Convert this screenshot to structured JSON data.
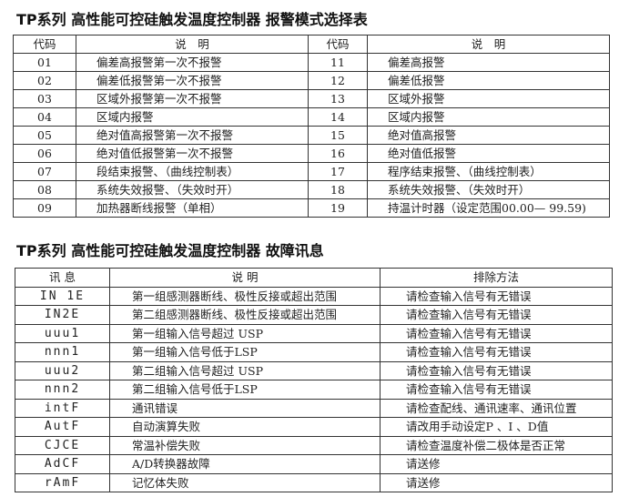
{
  "alarm": {
    "title": "TP系列 高性能可控硅触发温度控制器 报警模式选择表",
    "headers": [
      "代码",
      "说　明",
      "代码",
      "说　明"
    ],
    "rows": [
      [
        "01",
        "偏差高报警第一次不报警",
        "11",
        "偏差高报警"
      ],
      [
        "02",
        "偏差低报警第一次不报警",
        "12",
        "偏差低报警"
      ],
      [
        "03",
        "区域外报警第一次不报警",
        "13",
        "区域外报警"
      ],
      [
        "04",
        "区域内报警",
        "14",
        "区域内报警"
      ],
      [
        "05",
        "绝对值高报警第一次不报警",
        "15",
        "绝对值高报警"
      ],
      [
        "06",
        "绝对值低报警第一次不报警",
        "16",
        "绝对值低报警"
      ],
      [
        "07",
        "段结束报警、（曲线控制表）",
        "17",
        "程序结束报警、（曲线控制表）"
      ],
      [
        "08",
        "系统失效报警、（失效时开）",
        "18",
        "系统失效报警、（失效时开）"
      ],
      [
        "09",
        "加热器断线报警（单相）",
        "19",
        "持温计时器（设定范围00.00— 99.59)"
      ]
    ]
  },
  "fault": {
    "title": "TP系列 高性能可控硅触发温度控制器 故障讯息",
    "headers": [
      "讯 息",
      "说 明",
      "排除方法"
    ],
    "rows": [
      [
        "IN 1E",
        "第一组感测器断线、极性反接或超出范围",
        "请检查输入信号有无错误"
      ],
      [
        "IN2E",
        "第二组感测器断线、极性反接或超出范围",
        "请检查输入信号有无错误"
      ],
      [
        "uuu1",
        "第一组输入信号超过 USP",
        "请检查输入信号有无错误"
      ],
      [
        "nnn1",
        "第一组输入信号低于LSP",
        "请检查输入信号有无错误"
      ],
      [
        "uuu2",
        "第二组输入信号超过 USP",
        "请检查输入信号有无错误"
      ],
      [
        "nnn2",
        "第二组输入信号低于LSP",
        "请检查输入信号有无错误"
      ],
      [
        "intF",
        "通讯错误",
        "请检查配线、通讯速率、通讯位置"
      ],
      [
        "AutF",
        "自动演算失败",
        "请改用手动设定P 、I 、D值"
      ],
      [
        "CJCE",
        "常温补偿失败",
        "请检查温度补偿二极体是否正常"
      ],
      [
        "AdCF",
        "A/D转换器故障",
        "请送修"
      ],
      [
        "rAmF",
        "记忆体失败",
        "请送修"
      ]
    ]
  }
}
